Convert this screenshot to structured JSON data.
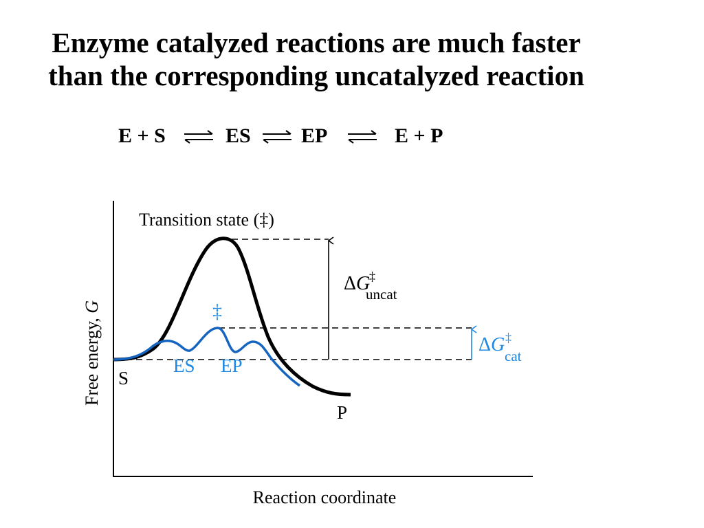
{
  "title": {
    "line1": "Enzyme catalyzed reactions are much faster",
    "line2": "than the corresponding uncatalyzed  reaction"
  },
  "equation": {
    "terms": [
      "E + S",
      "ES",
      "EP",
      "E + P"
    ]
  },
  "diagram": {
    "ylabel_text": "Free energy, ",
    "ylabel_symbol": "G",
    "xlabel": "Reaction coordinate",
    "transition_state_label": "Transition state (‡)",
    "catalyzed_ts_label": "‡",
    "s_label": "S",
    "p_label": "P",
    "es_label": "ES",
    "ep_label": "EP",
    "dg_uncat": {
      "delta": "Δ",
      "symbol": "G",
      "superscript": "‡",
      "subscript": "uncat"
    },
    "dg_cat": {
      "delta": "Δ",
      "symbol": "G",
      "superscript": "‡",
      "subscript": "cat"
    },
    "colors": {
      "uncatalyzed": "#000000",
      "catalyzed": "#1565c0",
      "axis": "#000000",
      "cat_label": "#1e88e5"
    }
  }
}
